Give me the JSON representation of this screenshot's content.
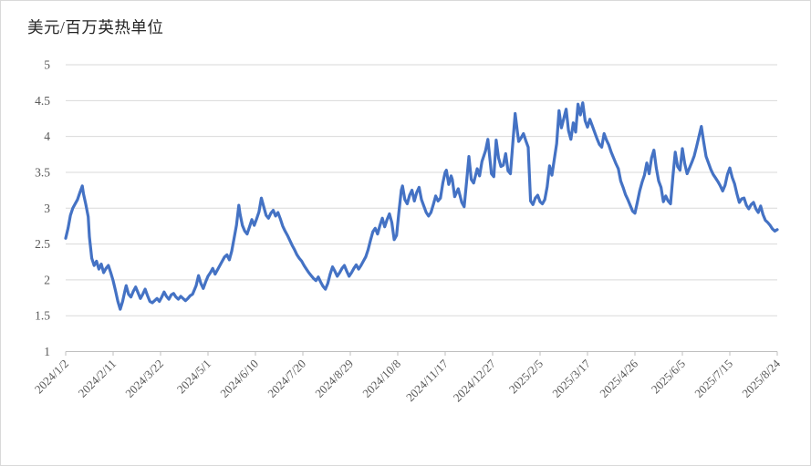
{
  "chart_data": {
    "type": "line",
    "title": "美元/百万英热单位",
    "grid": true,
    "legend": false,
    "ylim": [
      1,
      5
    ],
    "ytick_values": [
      1,
      1.5,
      2,
      2.5,
      3,
      3.5,
      4,
      4.5,
      5
    ],
    "ytick_labels": [
      "1",
      "1.5",
      "2",
      "2.5",
      "3",
      "3.5",
      "4",
      "4.5",
      "5"
    ],
    "x_tick_interval_days": 40,
    "x_total_days": 600,
    "xtick_labels": [
      "2024/1/2",
      "2024/2/11",
      "2024/3/22",
      "2024/5/1",
      "2024/6/10",
      "2024/7/20",
      "2024/8/29",
      "2024/10/8",
      "2024/11/17",
      "2024/12/27",
      "2025/2/5",
      "2025/3/17",
      "2025/4/26",
      "2025/6/5",
      "2025/7/15",
      "2025/8/24"
    ],
    "colors": {
      "line": "#4472C4",
      "grid": "#D9D9D9",
      "axis": "#BFBFBF",
      "tick_label": "#595959",
      "title": "#262626"
    },
    "series": [
      {
        "name": "美元/百万英热单位",
        "color": "#4472C4",
        "points": [
          [
            0,
            2.58
          ],
          [
            2,
            2.72
          ],
          [
            4,
            2.9
          ],
          [
            6,
            3.0
          ],
          [
            8,
            3.06
          ],
          [
            10,
            3.12
          ],
          [
            12,
            3.22
          ],
          [
            14,
            3.31
          ],
          [
            15,
            3.2
          ],
          [
            17,
            3.05
          ],
          [
            19,
            2.88
          ],
          [
            20,
            2.6
          ],
          [
            22,
            2.3
          ],
          [
            24,
            2.2
          ],
          [
            26,
            2.26
          ],
          [
            28,
            2.15
          ],
          [
            30,
            2.22
          ],
          [
            32,
            2.1
          ],
          [
            34,
            2.16
          ],
          [
            36,
            2.2
          ],
          [
            38,
            2.1
          ],
          [
            40,
            1.99
          ],
          [
            42,
            1.85
          ],
          [
            44,
            1.7
          ],
          [
            46,
            1.59
          ],
          [
            48,
            1.7
          ],
          [
            50,
            1.85
          ],
          [
            51,
            1.92
          ],
          [
            53,
            1.8
          ],
          [
            55,
            1.76
          ],
          [
            57,
            1.84
          ],
          [
            59,
            1.9
          ],
          [
            61,
            1.82
          ],
          [
            63,
            1.74
          ],
          [
            65,
            1.8
          ],
          [
            67,
            1.87
          ],
          [
            69,
            1.78
          ],
          [
            71,
            1.7
          ],
          [
            73,
            1.68
          ],
          [
            75,
            1.71
          ],
          [
            77,
            1.74
          ],
          [
            79,
            1.7
          ],
          [
            81,
            1.76
          ],
          [
            83,
            1.83
          ],
          [
            85,
            1.77
          ],
          [
            87,
            1.73
          ],
          [
            89,
            1.79
          ],
          [
            91,
            1.81
          ],
          [
            93,
            1.76
          ],
          [
            95,
            1.73
          ],
          [
            97,
            1.77
          ],
          [
            99,
            1.74
          ],
          [
            101,
            1.71
          ],
          [
            103,
            1.74
          ],
          [
            105,
            1.78
          ],
          [
            107,
            1.8
          ],
          [
            110,
            1.92
          ],
          [
            112,
            2.06
          ],
          [
            114,
            1.95
          ],
          [
            116,
            1.88
          ],
          [
            118,
            1.97
          ],
          [
            120,
            2.05
          ],
          [
            122,
            2.1
          ],
          [
            124,
            2.16
          ],
          [
            126,
            2.08
          ],
          [
            128,
            2.14
          ],
          [
            130,
            2.2
          ],
          [
            132,
            2.26
          ],
          [
            134,
            2.32
          ],
          [
            136,
            2.35
          ],
          [
            138,
            2.28
          ],
          [
            140,
            2.4
          ],
          [
            142,
            2.58
          ],
          [
            144,
            2.76
          ],
          [
            146,
            3.04
          ],
          [
            147,
            2.92
          ],
          [
            149,
            2.76
          ],
          [
            151,
            2.68
          ],
          [
            153,
            2.64
          ],
          [
            155,
            2.74
          ],
          [
            157,
            2.84
          ],
          [
            159,
            2.76
          ],
          [
            161,
            2.85
          ],
          [
            163,
            2.95
          ],
          [
            165,
            3.14
          ],
          [
            167,
            3.02
          ],
          [
            169,
            2.9
          ],
          [
            171,
            2.86
          ],
          [
            173,
            2.93
          ],
          [
            175,
            2.97
          ],
          [
            177,
            2.89
          ],
          [
            179,
            2.94
          ],
          [
            181,
            2.85
          ],
          [
            183,
            2.75
          ],
          [
            185,
            2.68
          ],
          [
            187,
            2.62
          ],
          [
            189,
            2.55
          ],
          [
            191,
            2.48
          ],
          [
            193,
            2.42
          ],
          [
            195,
            2.35
          ],
          [
            197,
            2.3
          ],
          [
            199,
            2.26
          ],
          [
            201,
            2.2
          ],
          [
            203,
            2.15
          ],
          [
            205,
            2.1
          ],
          [
            207,
            2.06
          ],
          [
            209,
            2.02
          ],
          [
            211,
            1.99
          ],
          [
            213,
            2.04
          ],
          [
            215,
            1.97
          ],
          [
            217,
            1.91
          ],
          [
            219,
            1.87
          ],
          [
            221,
            1.95
          ],
          [
            223,
            2.08
          ],
          [
            225,
            2.18
          ],
          [
            227,
            2.12
          ],
          [
            229,
            2.05
          ],
          [
            231,
            2.1
          ],
          [
            233,
            2.16
          ],
          [
            235,
            2.2
          ],
          [
            237,
            2.12
          ],
          [
            239,
            2.05
          ],
          [
            241,
            2.1
          ],
          [
            243,
            2.16
          ],
          [
            245,
            2.21
          ],
          [
            247,
            2.15
          ],
          [
            249,
            2.2
          ],
          [
            251,
            2.26
          ],
          [
            253,
            2.32
          ],
          [
            255,
            2.42
          ],
          [
            257,
            2.55
          ],
          [
            259,
            2.67
          ],
          [
            261,
            2.72
          ],
          [
            263,
            2.64
          ],
          [
            265,
            2.76
          ],
          [
            267,
            2.86
          ],
          [
            269,
            2.74
          ],
          [
            271,
            2.84
          ],
          [
            273,
            2.92
          ],
          [
            275,
            2.8
          ],
          [
            277,
            2.56
          ],
          [
            279,
            2.62
          ],
          [
            281,
            2.95
          ],
          [
            283,
            3.25
          ],
          [
            284,
            3.31
          ],
          [
            286,
            3.12
          ],
          [
            288,
            3.06
          ],
          [
            290,
            3.18
          ],
          [
            292,
            3.25
          ],
          [
            294,
            3.1
          ],
          [
            296,
            3.22
          ],
          [
            298,
            3.29
          ],
          [
            300,
            3.12
          ],
          [
            302,
            3.03
          ],
          [
            304,
            2.94
          ],
          [
            306,
            2.89
          ],
          [
            308,
            2.94
          ],
          [
            310,
            3.05
          ],
          [
            312,
            3.17
          ],
          [
            314,
            3.1
          ],
          [
            316,
            3.14
          ],
          [
            318,
            3.35
          ],
          [
            320,
            3.5
          ],
          [
            321,
            3.53
          ],
          [
            323,
            3.33
          ],
          [
            325,
            3.45
          ],
          [
            326,
            3.4
          ],
          [
            328,
            3.16
          ],
          [
            331,
            3.27
          ],
          [
            334,
            3.08
          ],
          [
            336,
            3.02
          ],
          [
            338,
            3.36
          ],
          [
            340,
            3.72
          ],
          [
            342,
            3.4
          ],
          [
            344,
            3.35
          ],
          [
            347,
            3.55
          ],
          [
            349,
            3.45
          ],
          [
            351,
            3.65
          ],
          [
            354,
            3.8
          ],
          [
            356,
            3.96
          ],
          [
            359,
            3.48
          ],
          [
            361,
            3.44
          ],
          [
            363,
            3.95
          ],
          [
            365,
            3.7
          ],
          [
            367,
            3.58
          ],
          [
            369,
            3.6
          ],
          [
            371,
            3.76
          ],
          [
            373,
            3.52
          ],
          [
            375,
            3.48
          ],
          [
            377,
            3.9
          ],
          [
            379,
            4.32
          ],
          [
            381,
            4.05
          ],
          [
            382,
            3.93
          ],
          [
            384,
            3.98
          ],
          [
            386,
            4.04
          ],
          [
            388,
            3.94
          ],
          [
            390,
            3.85
          ],
          [
            392,
            3.1
          ],
          [
            394,
            3.05
          ],
          [
            396,
            3.14
          ],
          [
            398,
            3.18
          ],
          [
            400,
            3.09
          ],
          [
            402,
            3.06
          ],
          [
            404,
            3.12
          ],
          [
            406,
            3.3
          ],
          [
            408,
            3.59
          ],
          [
            410,
            3.46
          ],
          [
            412,
            3.68
          ],
          [
            414,
            3.9
          ],
          [
            416,
            4.36
          ],
          [
            418,
            4.12
          ],
          [
            420,
            4.25
          ],
          [
            422,
            4.38
          ],
          [
            424,
            4.08
          ],
          [
            426,
            3.96
          ],
          [
            428,
            4.19
          ],
          [
            430,
            4.06
          ],
          [
            432,
            4.45
          ],
          [
            434,
            4.3
          ],
          [
            436,
            4.47
          ],
          [
            438,
            4.22
          ],
          [
            440,
            4.13
          ],
          [
            442,
            4.24
          ],
          [
            444,
            4.15
          ],
          [
            446,
            4.06
          ],
          [
            448,
            3.97
          ],
          [
            450,
            3.89
          ],
          [
            452,
            3.85
          ],
          [
            454,
            4.04
          ],
          [
            456,
            3.95
          ],
          [
            458,
            3.88
          ],
          [
            460,
            3.78
          ],
          [
            462,
            3.7
          ],
          [
            464,
            3.62
          ],
          [
            466,
            3.55
          ],
          [
            468,
            3.38
          ],
          [
            470,
            3.29
          ],
          [
            472,
            3.19
          ],
          [
            474,
            3.12
          ],
          [
            476,
            3.04
          ],
          [
            478,
            2.96
          ],
          [
            480,
            2.93
          ],
          [
            482,
            3.08
          ],
          [
            484,
            3.24
          ],
          [
            486,
            3.36
          ],
          [
            488,
            3.46
          ],
          [
            490,
            3.63
          ],
          [
            492,
            3.48
          ],
          [
            494,
            3.7
          ],
          [
            496,
            3.81
          ],
          [
            498,
            3.56
          ],
          [
            500,
            3.38
          ],
          [
            502,
            3.29
          ],
          [
            504,
            3.09
          ],
          [
            506,
            3.17
          ],
          [
            508,
            3.1
          ],
          [
            510,
            3.06
          ],
          [
            512,
            3.44
          ],
          [
            514,
            3.78
          ],
          [
            516,
            3.58
          ],
          [
            518,
            3.53
          ],
          [
            520,
            3.83
          ],
          [
            522,
            3.62
          ],
          [
            524,
            3.48
          ],
          [
            526,
            3.56
          ],
          [
            528,
            3.64
          ],
          [
            530,
            3.73
          ],
          [
            532,
            3.86
          ],
          [
            534,
            4.0
          ],
          [
            536,
            4.14
          ],
          [
            538,
            3.92
          ],
          [
            540,
            3.72
          ],
          [
            542,
            3.63
          ],
          [
            544,
            3.54
          ],
          [
            546,
            3.47
          ],
          [
            548,
            3.42
          ],
          [
            550,
            3.37
          ],
          [
            552,
            3.31
          ],
          [
            554,
            3.24
          ],
          [
            556,
            3.32
          ],
          [
            558,
            3.47
          ],
          [
            560,
            3.56
          ],
          [
            562,
            3.43
          ],
          [
            564,
            3.34
          ],
          [
            566,
            3.2
          ],
          [
            568,
            3.08
          ],
          [
            570,
            3.13
          ],
          [
            572,
            3.14
          ],
          [
            574,
            3.04
          ],
          [
            576,
            2.99
          ],
          [
            578,
            3.05
          ],
          [
            580,
            3.08
          ],
          [
            582,
            2.99
          ],
          [
            584,
            2.94
          ],
          [
            586,
            3.03
          ],
          [
            588,
            2.91
          ],
          [
            590,
            2.83
          ],
          [
            592,
            2.8
          ],
          [
            594,
            2.76
          ],
          [
            596,
            2.71
          ],
          [
            598,
            2.68
          ],
          [
            600,
            2.7
          ]
        ]
      }
    ]
  }
}
